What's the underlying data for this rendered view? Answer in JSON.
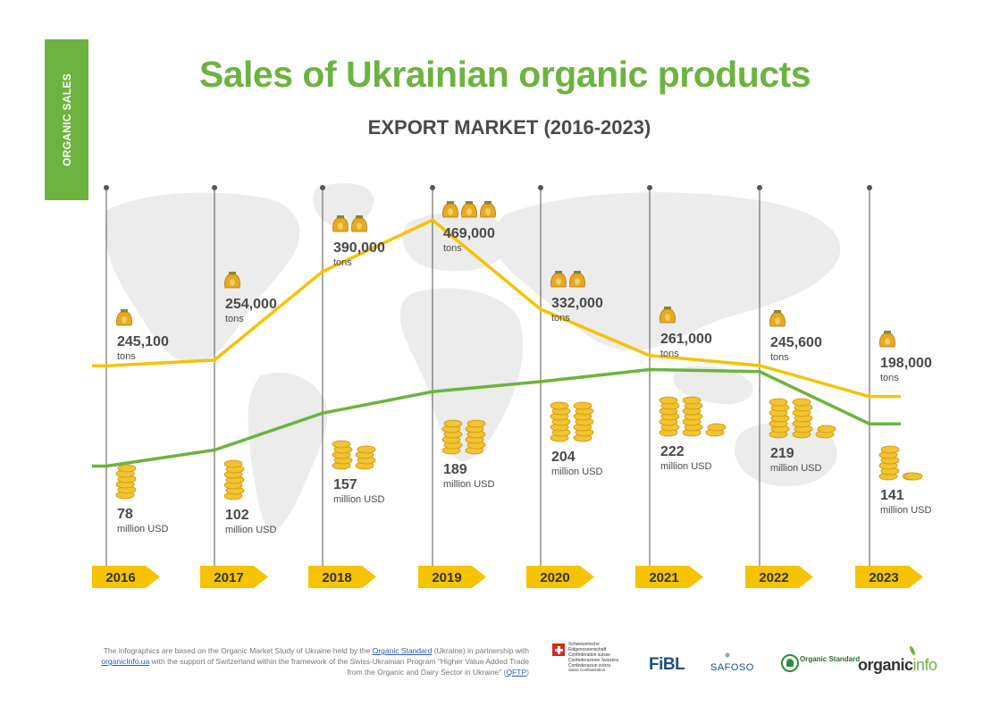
{
  "side_tab": "ORGANIC SALES",
  "title": "Sales of Ukrainian organic products",
  "subtitle": "EXPORT MARKET (2016-2023)",
  "colors": {
    "green": "#6db33f",
    "yellow": "#f5c300",
    "text": "#4a4a4a",
    "map": "#ececec"
  },
  "chart_data": {
    "type": "line",
    "x": [
      "2016",
      "2017",
      "2018",
      "2019",
      "2020",
      "2021",
      "2022",
      "2023"
    ],
    "series": [
      {
        "name": "",
        "unit": "tons",
        "values": [
          245100,
          254000,
          390000,
          469000,
          332000,
          261000,
          245600,
          198000
        ],
        "labels": [
          "245,100",
          "254,000",
          "390,000",
          "469,000",
          "332,000",
          "261,000",
          "245,600",
          "198,000"
        ],
        "color": "#f5c300",
        "icon": "money-bag-icon",
        "icon_counts": [
          1,
          1,
          2,
          3,
          2,
          1,
          1,
          1
        ]
      },
      {
        "name": "",
        "unit": "million USD",
        "values": [
          78,
          102,
          157,
          189,
          204,
          222,
          219,
          141
        ],
        "labels": [
          "78",
          "102",
          "157",
          "189",
          "204",
          "222",
          "219",
          "141"
        ],
        "color": "#6db33f",
        "icon": "coin-stack-icon"
      }
    ],
    "background": "world-map",
    "grid": false,
    "legend": "none"
  },
  "footer": {
    "part1": "The infographics are based on the Organic Market Study of Ukraine held by the ",
    "link1": "Organic Standard",
    "part2": " (Ukraine) in partnership with ",
    "link2": "organicInfo.ua",
    "part3": " with the support of Switzerland within the framework of the Swiss-Ukrainian Program \"Higher Value Added Trade from the Organic and Dairy Sector in Ukraine\" (",
    "link3": "QFTP",
    "part4": ")"
  },
  "logos": {
    "swiss_lines": "Schweizerische Eidgenossenschaft Confédération suisse Confederazione Svizzera Confederaziun svizra",
    "swiss_sub": "Swiss Confederation",
    "fibl": "FiBL",
    "safoso": "SAFOSO",
    "organic_standard": "Organic Standard",
    "organic": "organic",
    "info": "info"
  }
}
